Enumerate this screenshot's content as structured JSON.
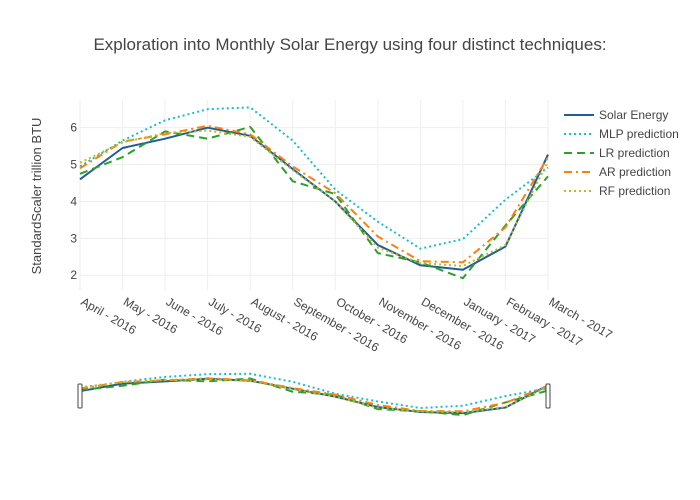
{
  "chart_data": {
    "type": "line",
    "title": "Exploration into Monthly Solar Energy using four distinct techniques:",
    "xlabel": "",
    "ylabel": "StandardScaler trillion BTU",
    "x": [
      "April - 2016",
      "May - 2016",
      "June - 2016",
      "July - 2016",
      "August - 2016",
      "September - 2016",
      "October - 2016",
      "November - 2016",
      "December - 2016",
      "January - 2017",
      "February - 2017",
      "March - 2017"
    ],
    "ylim": [
      1.6,
      6.75
    ],
    "yticks": [
      2,
      3,
      4,
      5,
      6
    ],
    "grid": true,
    "legend_position": "top-right",
    "range_slider": true,
    "series": [
      {
        "name": "Solar Energy",
        "color": "#1f5c99",
        "dash": "solid",
        "values": [
          4.6,
          5.45,
          5.7,
          6.0,
          5.78,
          4.88,
          4.0,
          2.82,
          2.27,
          2.15,
          2.78,
          5.27
        ]
      },
      {
        "name": "MLP prediction",
        "color": "#17becf",
        "dash": "dot",
        "values": [
          4.95,
          5.65,
          6.2,
          6.5,
          6.55,
          5.65,
          4.32,
          3.45,
          2.72,
          2.98,
          4.05,
          4.92
        ]
      },
      {
        "name": "LR prediction",
        "color": "#2ca02c",
        "dash": "dash",
        "values": [
          4.75,
          5.2,
          5.9,
          5.7,
          6.02,
          4.55,
          4.2,
          2.6,
          2.35,
          1.92,
          3.35,
          4.68
        ]
      },
      {
        "name": "AR prediction",
        "color": "#ff7f0e",
        "dash": "dashdot",
        "values": [
          4.9,
          5.62,
          5.82,
          6.05,
          5.82,
          4.95,
          4.22,
          3.05,
          2.38,
          2.35,
          3.3,
          5.2
        ]
      },
      {
        "name": "RF prediction",
        "color": "#bcbd22",
        "dash": "dot",
        "values": [
          5.05,
          5.6,
          5.85,
          5.92,
          5.75,
          4.85,
          4.0,
          2.75,
          2.33,
          2.25,
          2.82,
          5.08
        ]
      }
    ]
  }
}
